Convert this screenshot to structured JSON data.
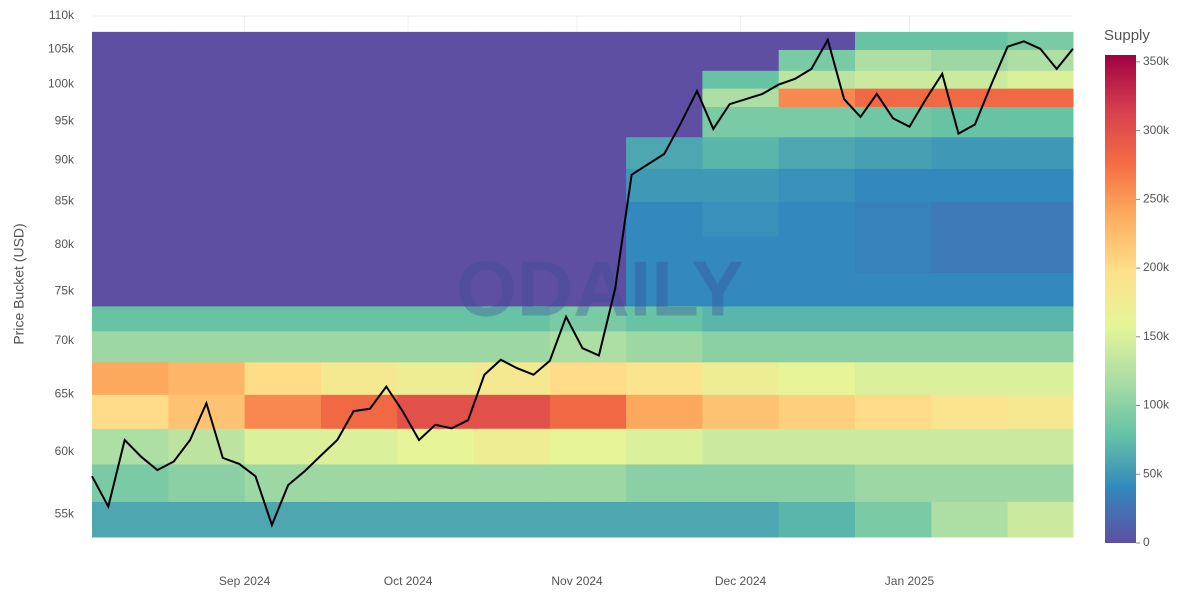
{
  "chart_data": {
    "type": "heatmap",
    "y_title": "Price Bucket (USD)",
    "colorbar_title": "Supply",
    "watermark": "ODAILY",
    "log_y": true,
    "grid": true,
    "xlim": [
      "2024-08-04",
      "2025-01-31"
    ],
    "xticks": [
      {
        "value": "2024-09",
        "label": "Sep 2024"
      },
      {
        "value": "2024-10",
        "label": "Oct 2024"
      },
      {
        "value": "2024-11",
        "label": "Nov 2024"
      },
      {
        "value": "2024-12",
        "label": "Dec 2024"
      },
      {
        "value": "2025-01",
        "label": "Jan 2025"
      }
    ],
    "ylim": [
      53300,
      110000
    ],
    "yticks": [
      {
        "value": 55000,
        "label": "55k"
      },
      {
        "value": 60000,
        "label": "60k"
      },
      {
        "value": 65000,
        "label": "65k"
      },
      {
        "value": 70000,
        "label": "70k"
      },
      {
        "value": 75000,
        "label": "75k"
      },
      {
        "value": 80000,
        "label": "80k"
      },
      {
        "value": 85000,
        "label": "85k"
      },
      {
        "value": 90000,
        "label": "90k"
      },
      {
        "value": 95000,
        "label": "95k"
      },
      {
        "value": 100000,
        "label": "100k"
      },
      {
        "value": 105000,
        "label": "105k"
      },
      {
        "value": 110000,
        "label": "110k"
      }
    ],
    "zlim": [
      0,
      355000
    ],
    "zticks": [
      0,
      {
        "value": 50000,
        "label": "50k"
      },
      {
        "value": 100000,
        "label": "100k"
      },
      {
        "value": 150000,
        "label": "150k"
      },
      {
        "value": 200000,
        "label": "200k"
      },
      {
        "value": 250000,
        "label": "250k"
      },
      {
        "value": 300000,
        "label": "300k"
      },
      {
        "value": 350000,
        "label": "350k"
      }
    ],
    "colorscale": [
      "#5e4fa2",
      "#3288bd",
      "#66c2a5",
      "#abdda4",
      "#e6f598",
      "#fee08b",
      "#fdae61",
      "#f46d43",
      "#d53e4f",
      "#9e0142"
    ],
    "heatmap": {
      "date_edges": [
        "2024-08-04",
        "2024-08-18",
        "2024-09-01",
        "2024-09-15",
        "2024-09-29",
        "2024-10-13",
        "2024-10-27",
        "2024-11-10",
        "2024-11-24",
        "2024-12-08",
        "2024-12-22",
        "2025-01-05",
        "2025-01-19",
        "2025-01-31"
      ],
      "price_edges": [
        53300,
        56000,
        59000,
        62000,
        65000,
        68000,
        71000,
        73500,
        77000,
        81000,
        85000,
        89000,
        93000,
        97000,
        99500,
        102000,
        105000,
        107600
      ],
      "z": [
        [
          60000,
          60000,
          60000,
          60000,
          60000,
          60000,
          60000,
          60000,
          60000,
          70000,
          90000,
          120000,
          140000
        ],
        [
          90000,
          100000,
          110000,
          110000,
          110000,
          110000,
          110000,
          100000,
          100000,
          100000,
          110000,
          110000,
          110000
        ],
        [
          120000,
          130000,
          150000,
          150000,
          160000,
          170000,
          160000,
          150000,
          140000,
          140000,
          140000,
          140000,
          140000
        ],
        [
          200000,
          220000,
          260000,
          280000,
          300000,
          300000,
          280000,
          240000,
          220000,
          210000,
          200000,
          190000,
          180000
        ],
        [
          240000,
          230000,
          200000,
          180000,
          170000,
          180000,
          200000,
          190000,
          170000,
          160000,
          150000,
          150000,
          150000
        ],
        [
          110000,
          110000,
          110000,
          110000,
          110000,
          110000,
          120000,
          110000,
          100000,
          100000,
          100000,
          100000,
          100000
        ],
        [
          80000,
          80000,
          80000,
          80000,
          80000,
          80000,
          90000,
          80000,
          70000,
          70000,
          70000,
          70000,
          70000
        ],
        [
          0,
          0,
          0,
          0,
          0,
          0,
          0,
          40000,
          40000,
          40000,
          40000,
          40000,
          40000
        ],
        [
          0,
          0,
          0,
          0,
          0,
          0,
          0,
          40000,
          40000,
          40000,
          35000,
          30000,
          30000
        ],
        [
          0,
          0,
          0,
          0,
          0,
          0,
          0,
          40000,
          45000,
          40000,
          35000,
          30000,
          30000
        ],
        [
          0,
          0,
          0,
          0,
          0,
          0,
          0,
          50000,
          50000,
          45000,
          40000,
          40000,
          40000
        ],
        [
          0,
          0,
          0,
          0,
          0,
          0,
          0,
          60000,
          70000,
          60000,
          55000,
          50000,
          50000
        ],
        [
          0,
          0,
          0,
          0,
          0,
          0,
          0,
          0,
          90000,
          90000,
          85000,
          80000,
          80000
        ],
        [
          0,
          0,
          0,
          0,
          0,
          0,
          0,
          0,
          120000,
          260000,
          280000,
          280000,
          280000
        ],
        [
          0,
          0,
          0,
          0,
          0,
          0,
          0,
          0,
          80000,
          130000,
          140000,
          140000,
          150000
        ],
        [
          0,
          0,
          0,
          0,
          0,
          0,
          0,
          0,
          0,
          90000,
          120000,
          110000,
          120000
        ],
        [
          0,
          0,
          0,
          0,
          0,
          0,
          0,
          0,
          0,
          0,
          80000,
          80000,
          90000
        ]
      ]
    },
    "series": [
      {
        "color": "#000000",
        "x": [
          "2024-08-04",
          "2024-08-07",
          "2024-08-10",
          "2024-08-13",
          "2024-08-16",
          "2024-08-19",
          "2024-08-22",
          "2024-08-25",
          "2024-08-28",
          "2024-08-31",
          "2024-09-03",
          "2024-09-06",
          "2024-09-09",
          "2024-09-12",
          "2024-09-15",
          "2024-09-18",
          "2024-09-21",
          "2024-09-24",
          "2024-09-27",
          "2024-09-30",
          "2024-10-03",
          "2024-10-06",
          "2024-10-09",
          "2024-10-12",
          "2024-10-15",
          "2024-10-18",
          "2024-10-21",
          "2024-10-24",
          "2024-10-27",
          "2024-10-30",
          "2024-11-02",
          "2024-11-05",
          "2024-11-08",
          "2024-11-11",
          "2024-11-14",
          "2024-11-17",
          "2024-11-20",
          "2024-11-23",
          "2024-11-26",
          "2024-11-29",
          "2024-12-02",
          "2024-12-05",
          "2024-12-08",
          "2024-12-11",
          "2024-12-14",
          "2024-12-17",
          "2024-12-20",
          "2024-12-23",
          "2024-12-26",
          "2024-12-29",
          "2025-01-01",
          "2025-01-04",
          "2025-01-07",
          "2025-01-10",
          "2025-01-13",
          "2025-01-16",
          "2025-01-19",
          "2025-01-22",
          "2025-01-25",
          "2025-01-28",
          "2025-01-31"
        ],
        "values": [
          58000,
          55600,
          61000,
          59600,
          58500,
          59200,
          61000,
          64200,
          59500,
          59000,
          58000,
          54200,
          57300,
          58400,
          59700,
          61000,
          63500,
          63700,
          65700,
          63500,
          61000,
          62300,
          62000,
          62700,
          66800,
          68200,
          67400,
          66800,
          68100,
          72400,
          69300,
          68600,
          75300,
          88200,
          89500,
          90800,
          94700,
          99100,
          94000,
          97300,
          98000,
          98700,
          100000,
          100800,
          102200,
          106400,
          98000,
          95600,
          98700,
          95400,
          94300,
          98000,
          101500,
          93400,
          94600,
          100000,
          105400,
          106200,
          105100,
          102200,
          105100
        ]
      }
    ]
  }
}
